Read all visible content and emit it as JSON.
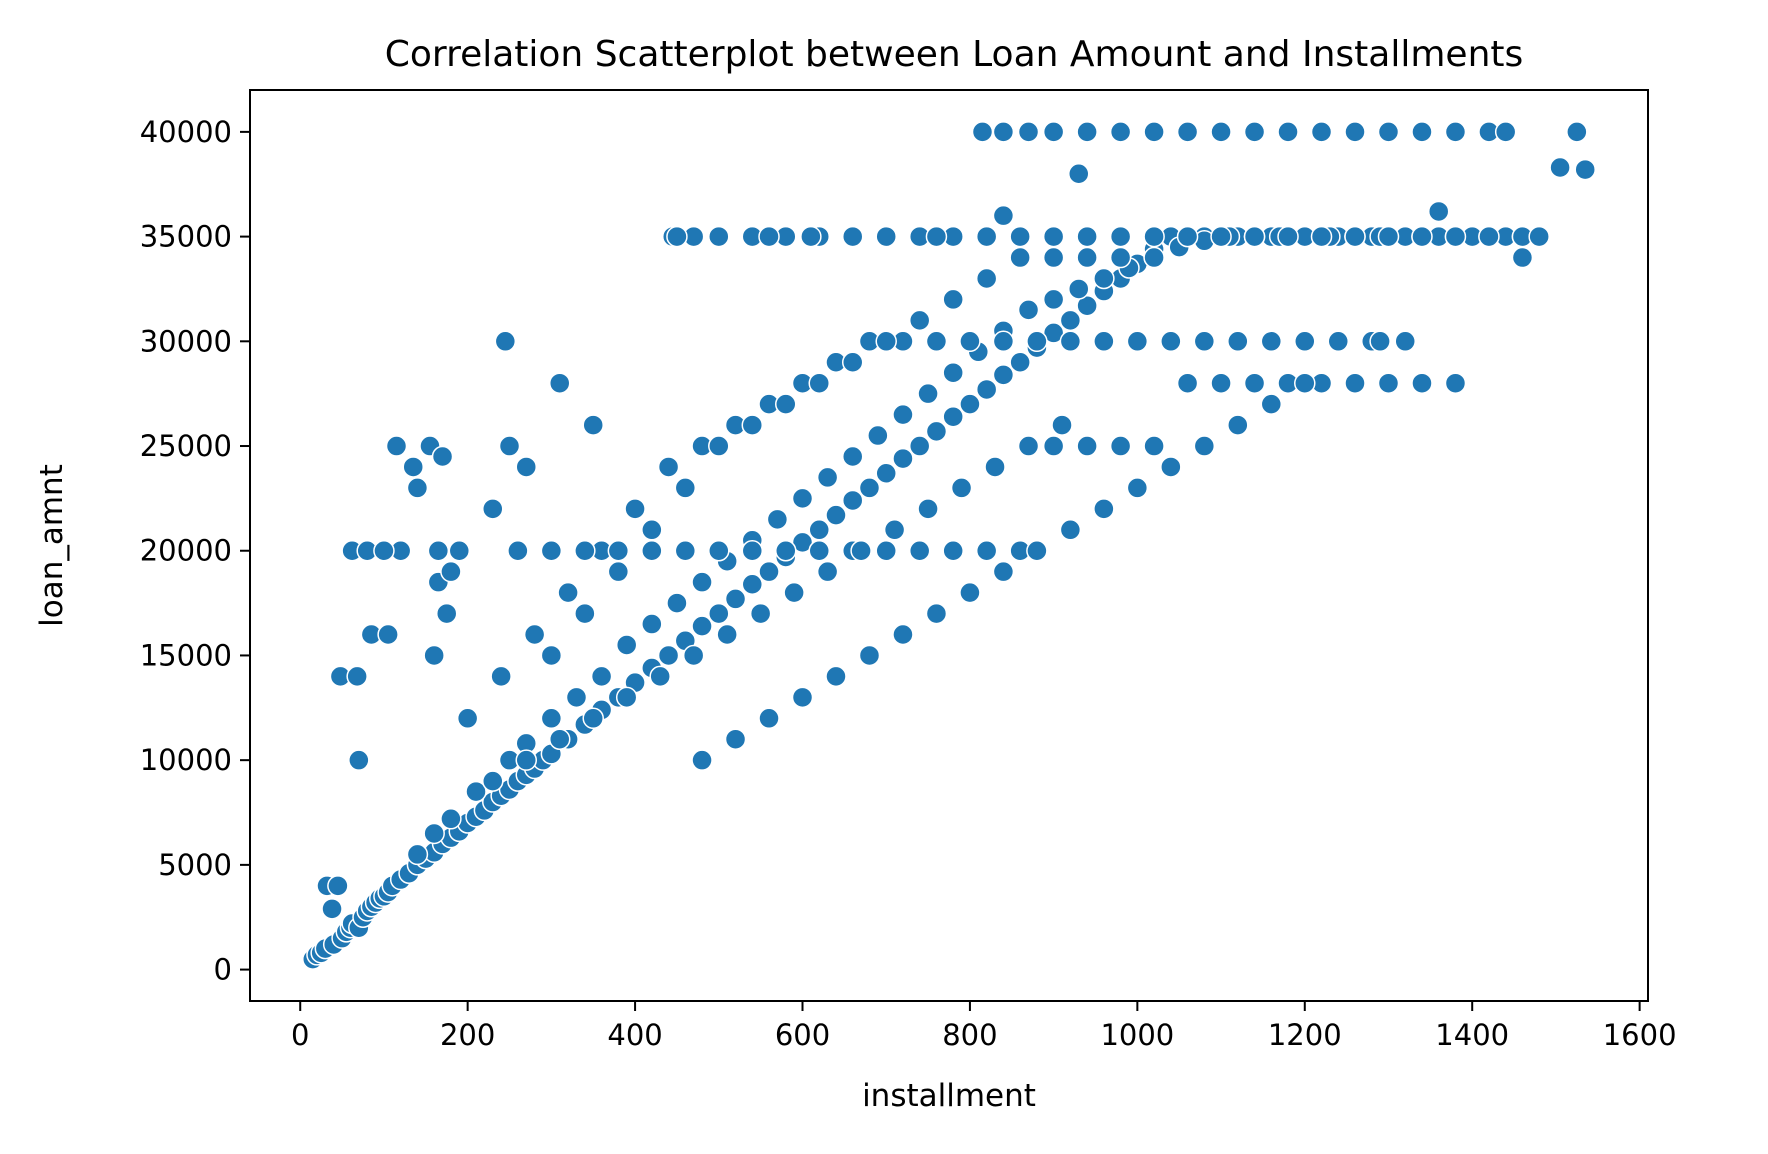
{
  "chart_data": {
    "type": "scatter",
    "title": "Correlation Scatterplot between Loan Amount and Installments",
    "xlabel": "installment",
    "ylabel": "loan_amnt",
    "xlim": [
      -60,
      1610
    ],
    "ylim": [
      -1500,
      42000
    ],
    "xticks": [
      0,
      200,
      400,
      600,
      800,
      1000,
      1200,
      1400,
      1600
    ],
    "yticks": [
      0,
      5000,
      10000,
      15000,
      20000,
      25000,
      30000,
      35000,
      40000
    ],
    "grid": false,
    "legend": "none",
    "colors": {
      "point": "#1f77b4",
      "edge": "#ffffff",
      "axis": "#000000"
    },
    "series": [
      {
        "x": [
          15,
          20,
          25,
          30,
          32,
          38,
          40,
          45,
          50,
          55,
          60,
          62,
          70,
          75,
          80,
          85,
          90,
          95,
          100,
          105,
          110,
          120,
          130,
          140,
          150,
          160,
          170,
          180,
          190,
          200,
          210,
          220,
          230,
          240,
          250,
          260,
          270,
          280,
          290,
          300,
          320,
          340,
          360,
          380,
          400,
          420,
          440,
          460,
          480,
          500,
          520,
          540,
          560,
          580,
          600,
          620,
          640,
          660,
          680,
          700,
          720,
          740,
          760,
          780,
          800,
          820,
          840,
          860,
          880,
          900,
          920,
          940,
          960,
          980,
          1000,
          1020,
          1040,
          1060,
          1080,
          1100,
          1120,
          1140,
          1160,
          1180,
          1200,
          1220,
          1240,
          1260,
          1280,
          1300,
          1320,
          1340,
          1360,
          1380,
          1400,
          1420,
          1440,
          1460,
          1480,
          140,
          160,
          180,
          210,
          250,
          270,
          300,
          330,
          360,
          390,
          420,
          450,
          480,
          510,
          540,
          570,
          600,
          630,
          660,
          690,
          720,
          750,
          780,
          810,
          840,
          870,
          900,
          930,
          960,
          990,
          1020,
          1050,
          1080,
          1110,
          1140,
          1170,
          1200,
          1230,
          1260,
          1290,
          200,
          240,
          280,
          320,
          360,
          400,
          440,
          480,
          520,
          560,
          600,
          640,
          680,
          720,
          760,
          800,
          840,
          880,
          920,
          960,
          1000,
          1040,
          1080,
          1120,
          1160,
          1200,
          1240,
          1280,
          1320,
          260,
          300,
          340,
          380,
          420,
          460,
          500,
          540,
          580,
          620,
          660,
          700,
          740,
          780,
          820,
          860,
          900,
          940,
          980,
          1020,
          1060,
          1100,
          1140,
          1180,
          1220,
          1260,
          1300,
          1340,
          1380,
          445,
          470,
          500,
          540,
          580,
          620,
          660,
          700,
          740,
          780,
          820,
          860,
          900,
          940,
          980,
          1020,
          1060,
          1100,
          1140,
          1180,
          1220,
          1260,
          1300,
          1340,
          1380,
          1420,
          1460,
          1480,
          815,
          840,
          870,
          900,
          940,
          980,
          1020,
          1060,
          1100,
          1140,
          1180,
          1220,
          1260,
          1300,
          1340,
          1380,
          1420,
          1440,
          1525,
          1535,
          1505,
          48,
          68,
          70,
          62,
          80,
          85,
          105,
          115,
          135,
          140,
          155,
          170,
          165,
          190,
          120,
          100,
          165,
          245,
          250,
          310,
          160,
          175,
          180,
          230,
          270,
          350,
          450,
          560,
          610,
          700,
          760,
          840,
          930,
          1200,
          1290,
          1360,
          1460,
          480,
          520,
          560,
          600,
          640,
          680,
          720,
          760,
          800,
          840,
          880,
          920,
          960,
          1000,
          1040,
          1080,
          1120,
          1160,
          300,
          340,
          380,
          420,
          460,
          500,
          540,
          580,
          620,
          660,
          700,
          740,
          780,
          820,
          860,
          900,
          940,
          980,
          1020,
          230,
          270,
          310,
          350,
          390,
          430,
          470,
          510,
          550,
          590,
          630,
          670,
          710,
          750,
          790,
          830,
          870,
          910
        ],
        "y": [
          500,
          700,
          800,
          1000,
          4000,
          2900,
          1200,
          4000,
          1500,
          1800,
          2000,
          2200,
          2000,
          2500,
          2800,
          3000,
          3200,
          3400,
          3500,
          3700,
          4000,
          4300,
          4600,
          5000,
          5300,
          5600,
          6000,
          6300,
          6600,
          7000,
          7300,
          7600,
          8000,
          8300,
          8600,
          9000,
          9300,
          9600,
          10000,
          10300,
          11000,
          11700,
          12400,
          13000,
          13700,
          14400,
          15000,
          15700,
          16400,
          17000,
          17700,
          18400,
          19000,
          19700,
          20400,
          21000,
          21700,
          22400,
          23000,
          23700,
          24400,
          25000,
          25700,
          26400,
          27000,
          27700,
          28400,
          29000,
          29700,
          30400,
          31000,
          31700,
          32400,
          33000,
          33700,
          34400,
          35000,
          35000,
          35000,
          35000,
          35000,
          35000,
          35000,
          35000,
          35000,
          35000,
          35000,
          35000,
          35000,
          35000,
          35000,
          35000,
          35000,
          35000,
          35000,
          35000,
          35000,
          35000,
          35000,
          5500,
          6500,
          7200,
          8500,
          10000,
          10800,
          12000,
          13000,
          14000,
          15500,
          16500,
          17500,
          18500,
          19500,
          20500,
          21500,
          22500,
          23500,
          24500,
          25500,
          26500,
          27500,
          28500,
          29500,
          30500,
          31500,
          32000,
          32500,
          33000,
          33500,
          34000,
          34500,
          34800,
          35000,
          35000,
          35000,
          35000,
          35000,
          35000,
          35000,
          12000,
          14000,
          16000,
          18000,
          20000,
          22000,
          24000,
          25000,
          26000,
          27000,
          28000,
          29000,
          30000,
          30000,
          30000,
          30000,
          30000,
          30000,
          30000,
          30000,
          30000,
          30000,
          30000,
          30000,
          30000,
          30000,
          30000,
          30000,
          30000,
          20000,
          20000,
          20000,
          20000,
          20000,
          20000,
          20000,
          20000,
          20000,
          20000,
          20000,
          20000,
          20000,
          20000,
          20000,
          20000,
          25000,
          25000,
          25000,
          25000,
          28000,
          28000,
          28000,
          28000,
          28000,
          28000,
          28000,
          28000,
          28000,
          35000,
          35000,
          35000,
          35000,
          35000,
          35000,
          35000,
          35000,
          35000,
          35000,
          35000,
          35000,
          35000,
          35000,
          35000,
          35000,
          35000,
          35000,
          35000,
          35000,
          35000,
          35000,
          35000,
          35000,
          35000,
          35000,
          35000,
          35000,
          40000,
          40000,
          40000,
          40000,
          40000,
          40000,
          40000,
          40000,
          40000,
          40000,
          40000,
          40000,
          40000,
          40000,
          40000,
          40000,
          40000,
          40000,
          40000,
          38200,
          38300,
          14000,
          14000,
          10000,
          20000,
          20000,
          16000,
          16000,
          25000,
          24000,
          23000,
          25000,
          24500,
          20000,
          20000,
          20000,
          20000,
          18500,
          30000,
          25000,
          28000,
          15000,
          17000,
          19000,
          22000,
          24000,
          26000,
          35000,
          35000,
          35000,
          35000,
          35000,
          36000,
          38000,
          28000,
          30000,
          36200,
          34000,
          10000,
          11000,
          12000,
          13000,
          14000,
          15000,
          16000,
          17000,
          18000,
          19000,
          20000,
          21000,
          22000,
          23000,
          24000,
          25000,
          26000,
          27000,
          15000,
          17000,
          19000,
          21000,
          23000,
          25000,
          26000,
          27000,
          28000,
          29000,
          30000,
          31000,
          32000,
          33000,
          34000,
          34000,
          34000,
          34000,
          34000,
          9000,
          10000,
          11000,
          12000,
          13000,
          14000,
          15000,
          16000,
          17000,
          18000,
          19000,
          20000,
          21000,
          22000,
          23000,
          24000,
          25000,
          26000
        ]
      }
    ]
  }
}
